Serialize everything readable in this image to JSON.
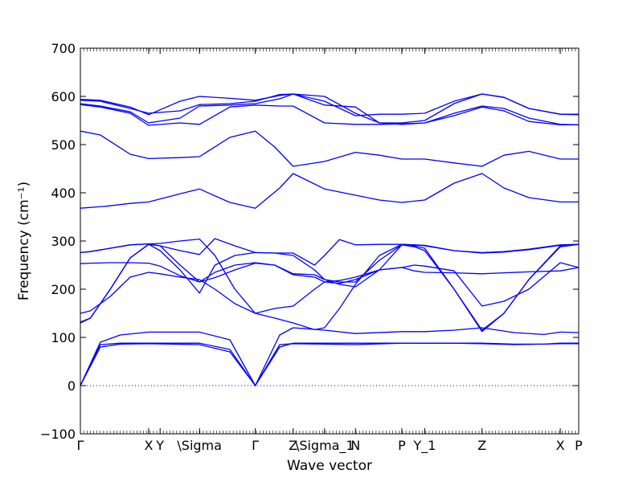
{
  "chart_data": {
    "type": "line",
    "title": "",
    "xlabel": "Wave vector",
    "ylabel": "Frequency (cm⁻¹)",
    "ylim": [
      -100,
      700
    ],
    "yticks": [
      -100,
      0,
      100,
      200,
      300,
      400,
      500,
      600,
      700
    ],
    "xlim": [
      0,
      1
    ],
    "x_ticks": [
      {
        "label": "Γ",
        "x": 0.0
      },
      {
        "label": "X",
        "x": 0.137
      },
      {
        "label": "Y",
        "x": 0.16
      },
      {
        "label": "\\Sigma",
        "x": 0.239
      },
      {
        "label": "Γ",
        "x": 0.351
      },
      {
        "label": "Z",
        "x": 0.427
      },
      {
        "label": "\\Sigma_1",
        "x": 0.49
      },
      {
        "label": "N",
        "x": 0.552
      },
      {
        "label": "P",
        "x": 0.645
      },
      {
        "label": "Y_1",
        "x": 0.691
      },
      {
        "label": "Z",
        "x": 0.806
      },
      {
        "label": "X",
        "x": 0.963
      },
      {
        "label": "P",
        "x": 1.0
      }
    ],
    "line_color": "#0000ff",
    "zero_line": {
      "y": 0,
      "style": "dotted",
      "color": "#0000ff"
    },
    "grid": false,
    "series": [
      {
        "x": [
          0,
          0.04,
          0.08,
          0.137,
          0.239,
          0.3,
          0.351,
          0.4,
          0.427,
          0.49,
          0.552,
          0.645,
          0.691,
          0.75,
          0.806,
          0.87,
          0.93,
          0.963,
          1.0
        ],
        "values": [
          0,
          85,
          88,
          88,
          88,
          75,
          0,
          80,
          88,
          88,
          88,
          88,
          88,
          88,
          88,
          86,
          86,
          87,
          87
        ]
      },
      {
        "x": [
          0,
          0.04,
          0.08,
          0.137,
          0.239,
          0.3,
          0.351,
          0.4,
          0.427,
          0.49,
          0.552,
          0.645,
          0.691,
          0.75,
          0.806,
          0.87,
          0.93,
          0.963,
          1.0
        ],
        "values": [
          0,
          80,
          86,
          87,
          85,
          70,
          0,
          85,
          87,
          86,
          85,
          88,
          88,
          88,
          87,
          85,
          86,
          88,
          88
        ]
      },
      {
        "x": [
          0,
          0.04,
          0.08,
          0.137,
          0.239,
          0.3,
          0.351,
          0.4,
          0.427,
          0.49,
          0.552,
          0.645,
          0.691,
          0.75,
          0.806,
          0.87,
          0.93,
          0.963,
          1.0
        ],
        "values": [
          0,
          90,
          105,
          111,
          111,
          95,
          0,
          105,
          120,
          115,
          108,
          112,
          112,
          115,
          120,
          110,
          106,
          111,
          110
        ]
      },
      {
        "x": [
          0,
          0.02,
          0.06,
          0.1,
          0.137,
          0.16,
          0.2,
          0.239,
          0.27,
          0.31,
          0.351,
          0.39,
          0.427,
          0.47,
          0.49,
          0.52,
          0.552,
          0.6,
          0.645,
          0.67,
          0.691,
          0.75,
          0.806,
          0.85,
          0.9,
          0.963,
          1.0
        ],
        "values": [
          130,
          140,
          200,
          265,
          293,
          290,
          250,
          215,
          235,
          250,
          255,
          250,
          230,
          225,
          215,
          212,
          220,
          240,
          245,
          250,
          248,
          238,
          165,
          175,
          200,
          255,
          245
        ]
      },
      {
        "x": [
          0,
          0.02,
          0.06,
          0.1,
          0.137,
          0.16,
          0.2,
          0.239,
          0.27,
          0.31,
          0.351,
          0.39,
          0.427,
          0.47,
          0.49,
          0.52,
          0.552,
          0.6,
          0.645,
          0.67,
          0.691,
          0.75,
          0.806,
          0.85,
          0.9,
          0.963,
          1.0
        ],
        "values": [
          150,
          155,
          185,
          225,
          235,
          232,
          225,
          220,
          200,
          170,
          150,
          160,
          165,
          200,
          215,
          218,
          225,
          240,
          245,
          238,
          235,
          234,
          232,
          234,
          236,
          238,
          245
        ]
      },
      {
        "x": [
          0,
          0.02,
          0.06,
          0.1,
          0.137,
          0.16,
          0.2,
          0.239,
          0.27,
          0.31,
          0.351,
          0.39,
          0.427,
          0.47,
          0.49,
          0.52,
          0.552,
          0.6,
          0.645,
          0.67,
          0.691,
          0.75,
          0.806,
          0.85,
          0.9,
          0.963,
          1.0
        ],
        "values": [
          132,
          140,
          200,
          265,
          293,
          280,
          240,
          192,
          250,
          270,
          276,
          275,
          270,
          240,
          220,
          215,
          215,
          260,
          292,
          288,
          280,
          200,
          115,
          150,
          220,
          290,
          293
        ]
      },
      {
        "x": [
          0,
          0.02,
          0.06,
          0.1,
          0.137,
          0.16,
          0.2,
          0.239,
          0.27,
          0.31,
          0.351,
          0.39,
          0.427,
          0.47,
          0.49,
          0.52,
          0.552,
          0.6,
          0.645,
          0.67,
          0.691,
          0.75,
          0.806,
          0.85,
          0.9,
          0.963,
          1.0
        ],
        "values": [
          253,
          254,
          255,
          255,
          254,
          248,
          228,
          215,
          224,
          240,
          254,
          250,
          232,
          230,
          220,
          210,
          205,
          240,
          292,
          290,
          285,
          200,
          112,
          150,
          220,
          288,
          293
        ]
      },
      {
        "x": [
          0,
          0.02,
          0.06,
          0.1,
          0.137,
          0.16,
          0.2,
          0.239,
          0.27,
          0.31,
          0.351,
          0.39,
          0.427,
          0.47,
          0.49,
          0.52,
          0.552,
          0.6,
          0.645,
          0.67,
          0.691,
          0.75,
          0.806,
          0.85,
          0.9,
          0.963,
          1.0
        ],
        "values": [
          276,
          278,
          285,
          292,
          294,
          295,
          300,
          304,
          270,
          200,
          150,
          140,
          130,
          116,
          120,
          160,
          210,
          270,
          293,
          292,
          290,
          280,
          276,
          278,
          283,
          292,
          293
        ]
      },
      {
        "x": [
          0,
          0.02,
          0.06,
          0.1,
          0.137,
          0.16,
          0.2,
          0.239,
          0.27,
          0.31,
          0.351,
          0.39,
          0.427,
          0.47,
          0.49,
          0.52,
          0.552,
          0.6,
          0.645,
          0.67,
          0.691,
          0.75,
          0.806,
          0.85,
          0.9,
          0.963,
          1.0
        ],
        "values": [
          276,
          278,
          285,
          292,
          294,
          290,
          280,
          272,
          305,
          290,
          276,
          275,
          275,
          250,
          270,
          303,
          292,
          293,
          293,
          292,
          291,
          280,
          275,
          277,
          282,
          291,
          293
        ]
      },
      {
        "x": [
          0,
          0.05,
          0.1,
          0.137,
          0.2,
          0.239,
          0.3,
          0.351,
          0.4,
          0.427,
          0.49,
          0.552,
          0.6,
          0.645,
          0.691,
          0.75,
          0.806,
          0.85,
          0.9,
          0.963,
          1.0
        ],
        "values": [
          368,
          372,
          378,
          381,
          398,
          408,
          380,
          368,
          410,
          440,
          408,
          395,
          385,
          380,
          385,
          420,
          440,
          410,
          390,
          381,
          381
        ]
      },
      {
        "x": [
          0,
          0.04,
          0.1,
          0.137,
          0.2,
          0.239,
          0.3,
          0.351,
          0.39,
          0.427,
          0.49,
          0.552,
          0.6,
          0.645,
          0.691,
          0.75,
          0.806,
          0.85,
          0.9,
          0.963,
          1.0
        ],
        "values": [
          528,
          520,
          480,
          471,
          473,
          475,
          515,
          528,
          495,
          455,
          465,
          484,
          478,
          470,
          470,
          462,
          455,
          478,
          486,
          470,
          470
        ]
      },
      {
        "x": [
          0,
          0.04,
          0.1,
          0.137,
          0.2,
          0.239,
          0.3,
          0.351,
          0.4,
          0.427,
          0.49,
          0.552,
          0.6,
          0.645,
          0.691,
          0.75,
          0.806,
          0.85,
          0.9,
          0.963,
          1.0
        ],
        "values": [
          583,
          578,
          565,
          540,
          545,
          542,
          578,
          582,
          580,
          580,
          545,
          542,
          542,
          543,
          545,
          560,
          578,
          570,
          548,
          541,
          541
        ]
      },
      {
        "x": [
          0,
          0.04,
          0.1,
          0.137,
          0.2,
          0.239,
          0.3,
          0.351,
          0.4,
          0.427,
          0.49,
          0.552,
          0.6,
          0.645,
          0.691,
          0.75,
          0.806,
          0.85,
          0.9,
          0.963,
          1.0
        ],
        "values": [
          585,
          580,
          568,
          545,
          555,
          580,
          582,
          585,
          595,
          605,
          582,
          578,
          545,
          542,
          545,
          565,
          580,
          575,
          555,
          542,
          541
        ]
      },
      {
        "x": [
          0,
          0.04,
          0.1,
          0.137,
          0.2,
          0.239,
          0.3,
          0.351,
          0.4,
          0.427,
          0.49,
          0.552,
          0.6,
          0.645,
          0.691,
          0.75,
          0.806,
          0.85,
          0.9,
          0.963,
          1.0
        ],
        "values": [
          592,
          590,
          575,
          565,
          570,
          583,
          585,
          590,
          604,
          605,
          590,
          560,
          563,
          563,
          565,
          590,
          605,
          598,
          575,
          563,
          563
        ]
      },
      {
        "x": [
          0,
          0.04,
          0.1,
          0.137,
          0.2,
          0.239,
          0.3,
          0.351,
          0.4,
          0.427,
          0.49,
          0.552,
          0.6,
          0.645,
          0.691,
          0.75,
          0.806,
          0.85,
          0.9,
          0.963,
          1.0
        ],
        "values": [
          594,
          592,
          578,
          562,
          590,
          600,
          596,
          592,
          602,
          605,
          600,
          565,
          545,
          545,
          550,
          585,
          605,
          598,
          575,
          563,
          562
        ]
      }
    ]
  }
}
